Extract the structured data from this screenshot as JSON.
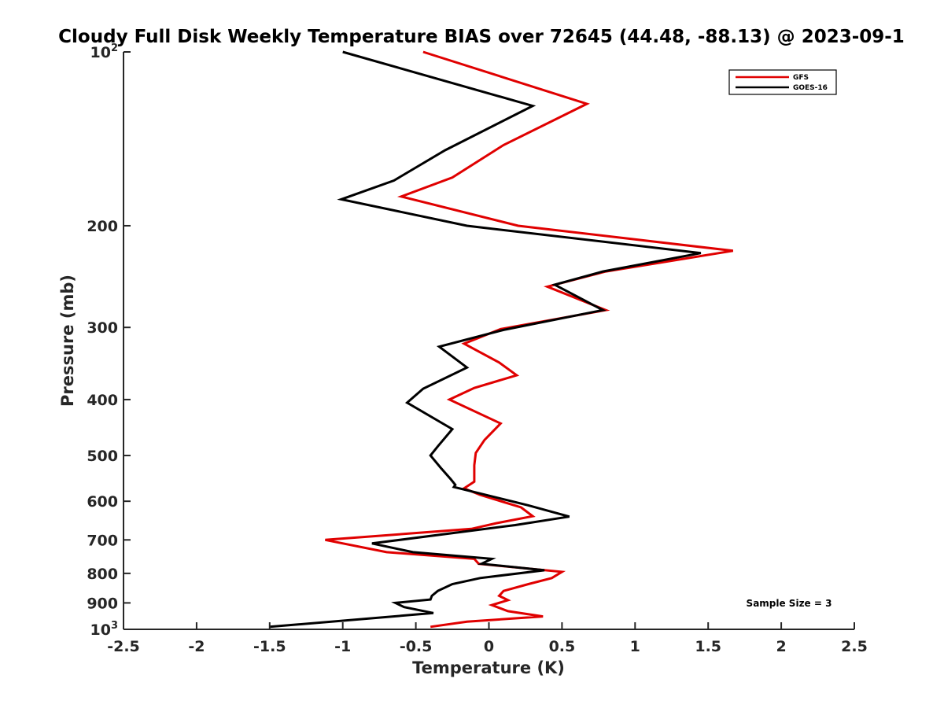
{
  "chart_data": {
    "type": "line",
    "title": "Cloudy Full Disk Weekly Temperature BIAS over 72645 (44.48, -88.13) @ 2023-09-1",
    "xlabel": "Temperature (K)",
    "ylabel": "Pressure (mb)",
    "xlim": [
      -2.5,
      2.5
    ],
    "ylim": [
      100,
      1000
    ],
    "y_scale": "log",
    "y_reversed": true,
    "x_ticks": [
      "-2.5",
      "-2",
      "-1.5",
      "-1",
      "-0.5",
      "0",
      "0.5",
      "1",
      "1.5",
      "2",
      "2.5"
    ],
    "y_ticks": [
      {
        "value": 100,
        "base": "10",
        "exp": "2"
      },
      {
        "value": 200,
        "label": "200"
      },
      {
        "value": 300,
        "label": "300"
      },
      {
        "value": 400,
        "label": "400"
      },
      {
        "value": 500,
        "label": "500"
      },
      {
        "value": 600,
        "label": "600"
      },
      {
        "value": 700,
        "label": "700"
      },
      {
        "value": 800,
        "label": "800"
      },
      {
        "value": 900,
        "label": "900"
      },
      {
        "value": 1000,
        "base": "10",
        "exp": "3"
      }
    ],
    "legend_position": "top-right",
    "grid": false,
    "annotation": "Sample Size = 3",
    "series": [
      {
        "name": "GFS",
        "color": "#e00000",
        "points": [
          [
            -0.45,
            100
          ],
          [
            0.67,
            123
          ],
          [
            0.1,
            145
          ],
          [
            -0.25,
            165
          ],
          [
            -0.6,
            178
          ],
          [
            0.2,
            200
          ],
          [
            1.67,
            221
          ],
          [
            0.8,
            240
          ],
          [
            0.4,
            255
          ],
          [
            0.8,
            280
          ],
          [
            0.08,
            302
          ],
          [
            -0.17,
            320
          ],
          [
            0.07,
            345
          ],
          [
            0.19,
            363
          ],
          [
            -0.1,
            382
          ],
          [
            -0.27,
            400
          ],
          [
            0.08,
            440
          ],
          [
            -0.03,
            470
          ],
          [
            -0.09,
            495
          ],
          [
            -0.1,
            520
          ],
          [
            -0.1,
            555
          ],
          [
            -0.17,
            570
          ],
          [
            -0.06,
            585
          ],
          [
            0.22,
            615
          ],
          [
            0.3,
            637
          ],
          [
            0.05,
            655
          ],
          [
            -0.12,
            670
          ],
          [
            -1.12,
            700
          ],
          [
            -0.7,
            735
          ],
          [
            -0.1,
            755
          ],
          [
            -0.07,
            770
          ],
          [
            0.5,
            795
          ],
          [
            0.43,
            815
          ],
          [
            0.27,
            835
          ],
          [
            0.1,
            858
          ],
          [
            0.07,
            875
          ],
          [
            0.13,
            890
          ],
          [
            0.02,
            908
          ],
          [
            0.13,
            930
          ],
          [
            0.37,
            950
          ],
          [
            -0.15,
            970
          ],
          [
            -0.4,
            990
          ]
        ]
      },
      {
        "name": "GOES-16",
        "color": "#000000",
        "points": [
          [
            -1.0,
            100
          ],
          [
            0.3,
            124
          ],
          [
            -0.3,
            148
          ],
          [
            -0.65,
            167
          ],
          [
            -1.01,
            180
          ],
          [
            -0.15,
            200
          ],
          [
            1.45,
            223
          ],
          [
            0.78,
            240
          ],
          [
            0.45,
            253
          ],
          [
            0.78,
            280
          ],
          [
            0.1,
            303
          ],
          [
            -0.34,
            324
          ],
          [
            -0.15,
            352
          ],
          [
            -0.45,
            383
          ],
          [
            -0.56,
            405
          ],
          [
            -0.25,
            450
          ],
          [
            -0.35,
            482
          ],
          [
            -0.4,
            500
          ],
          [
            -0.33,
            525
          ],
          [
            -0.26,
            550
          ],
          [
            -0.23,
            562
          ],
          [
            -0.24,
            567
          ],
          [
            0.27,
            610
          ],
          [
            0.55,
            638
          ],
          [
            0.18,
            660
          ],
          [
            -0.8,
            710
          ],
          [
            -0.52,
            735
          ],
          [
            0.02,
            755
          ],
          [
            -0.05,
            770
          ],
          [
            0.38,
            790
          ],
          [
            -0.06,
            815
          ],
          [
            -0.25,
            835
          ],
          [
            -0.35,
            858
          ],
          [
            -0.39,
            875
          ],
          [
            -0.4,
            888
          ],
          [
            -0.64,
            900
          ],
          [
            -0.58,
            915
          ],
          [
            -0.38,
            937
          ],
          [
            -1.5,
            990
          ]
        ]
      }
    ]
  }
}
